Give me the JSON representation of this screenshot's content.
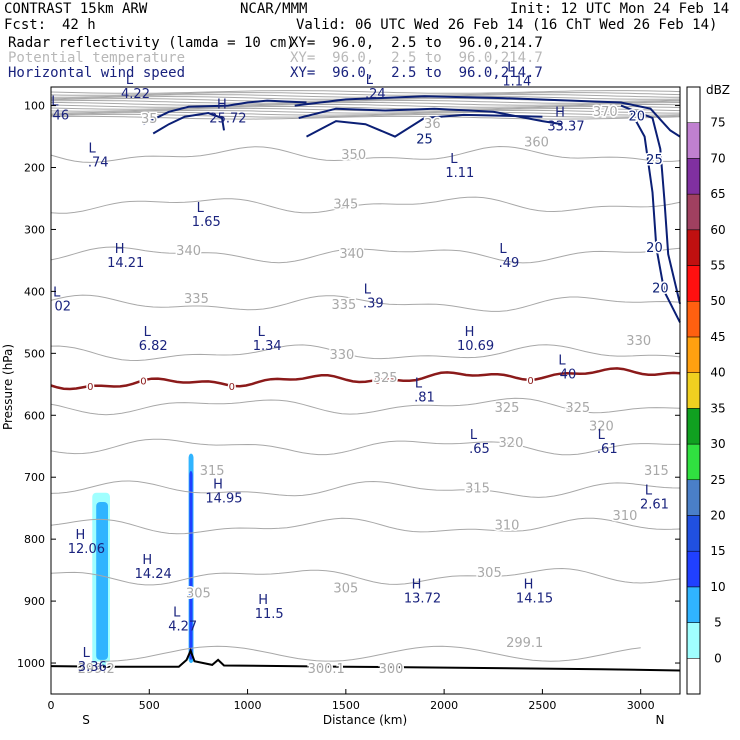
{
  "header": {
    "title": "CONTRAST 15km ARW",
    "org": "NCAR/MMM",
    "init": "Init: 12 UTC Mon 24 Feb 14",
    "fcst_label": "Fcst:",
    "fcst_value": "42 h",
    "valid": "Valid: 06 UTC Wed 26 Feb 14 (16 ChT Wed 26 Feb 14)",
    "fields": [
      {
        "name": "Radar reflectivity (lamda = 10 cm)",
        "xy": "XY=  96.0,  2.5 to  96.0,214.7",
        "style": "black"
      },
      {
        "name": "Potential temperature",
        "xy": "XY=  96.0,  2.5 to  96.0,214.7",
        "style": "gray"
      },
      {
        "name": "Horizontal wind speed",
        "xy": "XY=  96.0,  2.5 to  96.0,214.7",
        "style": "blue"
      }
    ]
  },
  "chart_data": {
    "type": "contour-cross-section",
    "xlabel": "Distance (km)",
    "ylabel": "Pressure (hPa)",
    "xlim": [
      0,
      3200
    ],
    "ylim": [
      1050,
      70
    ],
    "xticks": [
      0,
      500,
      1000,
      1500,
      2000,
      2500,
      3000
    ],
    "yticks": [
      100,
      200,
      300,
      400,
      500,
      600,
      700,
      800,
      900,
      1000
    ],
    "x_end_labels": {
      "left": "S",
      "right": "N"
    },
    "colorbar": {
      "unit": "dBZ",
      "levels": [
        0,
        5,
        10,
        15,
        20,
        25,
        30,
        35,
        40,
        45,
        50,
        55,
        60,
        65,
        70,
        75
      ],
      "colors": [
        "#ffffff",
        "#a0ffff",
        "#30b4ff",
        "#2040ff",
        "#2050e0",
        "#4a7fc8",
        "#30e040",
        "#10a020",
        "#f0d020",
        "#ffa010",
        "#ff6010",
        "#ff1010",
        "#c01010",
        "#a04060",
        "#8030a0",
        "#c080d0",
        "#ffffff"
      ]
    },
    "theta_contours": [
      {
        "level": "350",
        "p": 180,
        "x": 1540
      },
      {
        "level": "345",
        "p": 260,
        "x": 1500
      },
      {
        "level": "340",
        "p": 340,
        "x": 1500
      },
      {
        "level": "335",
        "p": 420,
        "x": 1430
      },
      {
        "level": "330",
        "p": 500,
        "x": 1450
      },
      {
        "level": "325",
        "p": 585,
        "x": 2350
      },
      {
        "level": "320",
        "p": 650,
        "x": 2350
      },
      {
        "level": "315",
        "p": 720,
        "x": 2140
      },
      {
        "level": "310",
        "p": 780,
        "x": 2320
      },
      {
        "level": "305",
        "p": 860,
        "x": 2220
      }
    ],
    "theta_labels": [
      {
        "text": "350",
        "x": 1540,
        "p": 180
      },
      {
        "text": "345",
        "x": 1500,
        "p": 260
      },
      {
        "text": "340",
        "x": 700,
        "p": 335
      },
      {
        "text": "340",
        "x": 1530,
        "p": 340
      },
      {
        "text": "335",
        "x": 740,
        "p": 412
      },
      {
        "text": "335",
        "x": 1490,
        "p": 422
      },
      {
        "text": "330",
        "x": 1480,
        "p": 503
      },
      {
        "text": "330",
        "x": 2990,
        "p": 480
      },
      {
        "text": "325",
        "x": 1700,
        "p": 540
      },
      {
        "text": "325",
        "x": 2320,
        "p": 588
      },
      {
        "text": "325",
        "x": 2680,
        "p": 588
      },
      {
        "text": "320",
        "x": 2340,
        "p": 645
      },
      {
        "text": "320",
        "x": 2800,
        "p": 618
      },
      {
        "text": "315",
        "x": 820,
        "p": 690
      },
      {
        "text": "315",
        "x": 2170,
        "p": 718
      },
      {
        "text": "315",
        "x": 3080,
        "p": 690
      },
      {
        "text": "310",
        "x": 2320,
        "p": 778
      },
      {
        "text": "310",
        "x": 2920,
        "p": 763
      },
      {
        "text": "305",
        "x": 2230,
        "p": 855
      },
      {
        "text": "305",
        "x": 1500,
        "p": 880
      },
      {
        "text": "305",
        "x": 750,
        "p": 888
      },
      {
        "text": "300",
        "x": 1730,
        "p": 1010
      },
      {
        "text": "300.1",
        "x": 1400,
        "p": 1010
      },
      {
        "text": "299.2",
        "x": 230,
        "p": 1010
      },
      {
        "text": "299.1",
        "x": 2410,
        "p": 968
      },
      {
        "text": "360",
        "x": 2470,
        "p": 160
      },
      {
        "text": "370",
        "x": 2820,
        "p": 110
      },
      {
        "text": "35",
        "x": 500,
        "p": 122
      },
      {
        "text": "36",
        "x": 1940,
        "p": 130
      }
    ],
    "zero_isotherm_label": "0",
    "zero_isotherm_label_x": [
      200,
      470,
      920,
      1660,
      2440
    ],
    "wind_labels": [
      {
        "text": "25",
        "x": 1900,
        "p": 155
      },
      {
        "text": "20",
        "x": 2980,
        "p": 118
      },
      {
        "text": "25",
        "x": 3070,
        "p": 188
      },
      {
        "text": "20",
        "x": 3070,
        "p": 330
      },
      {
        "text": "20",
        "x": 3100,
        "p": 395
      }
    ],
    "hl_markers": [
      {
        "type": "L",
        "value": "4.22",
        "x": 430,
        "p": 65
      },
      {
        "type": "H",
        "value": "25.72",
        "x": 900,
        "p": 105
      },
      {
        "type": "L",
        "value": ".24",
        "x": 1650,
        "p": 65
      },
      {
        "type": "L",
        "value": "1.14",
        "x": 2370,
        "p": 45
      },
      {
        "type": "H",
        "value": "33.37",
        "x": 2620,
        "p": 118
      },
      {
        "type": "L",
        "value": "46",
        "x": 50,
        "p": 100
      },
      {
        "type": "L",
        "value": ".74",
        "x": 240,
        "p": 176
      },
      {
        "type": "L",
        "value": "1.11",
        "x": 2080,
        "p": 193
      },
      {
        "type": "L",
        "value": "1.65",
        "x": 790,
        "p": 272
      },
      {
        "type": "H",
        "value": "14.21",
        "x": 380,
        "p": 338
      },
      {
        "type": "L",
        "value": ".49",
        "x": 2330,
        "p": 338
      },
      {
        "type": "L",
        "value": "02",
        "x": 60,
        "p": 408
      },
      {
        "type": "L",
        "value": ".39",
        "x": 1640,
        "p": 403
      },
      {
        "type": "L",
        "value": "6.82",
        "x": 520,
        "p": 472
      },
      {
        "type": "L",
        "value": "1.34",
        "x": 1100,
        "p": 472
      },
      {
        "type": "H",
        "value": "10.69",
        "x": 2160,
        "p": 472
      },
      {
        "type": "L",
        "value": "40",
        "x": 2630,
        "p": 518
      },
      {
        "type": "L",
        "value": ".81",
        "x": 1900,
        "p": 555
      },
      {
        "type": "L",
        "value": ".65",
        "x": 2180,
        "p": 638
      },
      {
        "type": "L",
        "value": ".61",
        "x": 2830,
        "p": 638
      },
      {
        "type": "H",
        "value": "14.95",
        "x": 880,
        "p": 718
      },
      {
        "type": "L",
        "value": "2.61",
        "x": 3070,
        "p": 728
      },
      {
        "type": "H",
        "value": "12.06",
        "x": 180,
        "p": 800
      },
      {
        "type": "H",
        "value": "14.24",
        "x": 520,
        "p": 840
      },
      {
        "type": "H",
        "value": "13.72",
        "x": 1890,
        "p": 880
      },
      {
        "type": "H",
        "value": "14.15",
        "x": 2460,
        "p": 880
      },
      {
        "type": "H",
        "value": "11.5",
        "x": 1110,
        "p": 905
      },
      {
        "type": "L",
        "value": "4.27",
        "x": 670,
        "p": 925
      },
      {
        "type": "L",
        "value": "3.36",
        "x": 210,
        "p": 990
      }
    ]
  }
}
